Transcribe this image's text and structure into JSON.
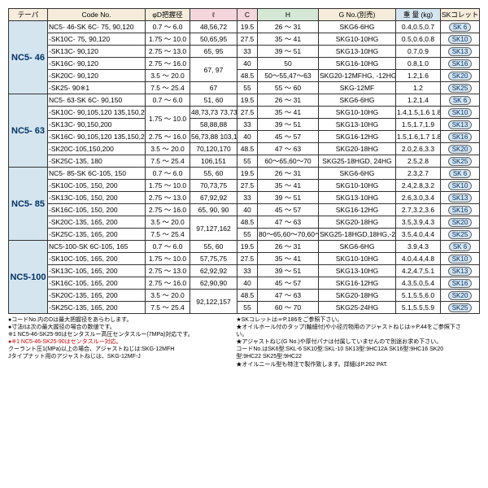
{
  "cols": [
    "テーパ",
    "Code No.",
    "φD把握径",
    "ℓ",
    "C",
    "H",
    "G No.(別売)",
    "重 量\n(kg)",
    "SKコレット"
  ],
  "widths": [
    48,
    120,
    55,
    58,
    25,
    75,
    95,
    55,
    48
  ],
  "hdrClass": [
    "",
    "",
    "",
    "hdr-pink",
    "hdr-pink",
    "hdr-green",
    "",
    "hdr-blue",
    ""
  ],
  "groups": [
    "NC5- 46",
    "NC5- 63",
    "NC5- 85",
    "NC5-100"
  ],
  "rows": [
    [
      {
        "g": 0,
        "rs": 6
      },
      "NC5- 46-SK 6C- 75, 90,120",
      "0.7 ～ 6.0",
      "48,56,72",
      "19.5",
      "26 ～ 31",
      "SKG6-6HG",
      "0.4,0.5,0.7",
      "SK 6"
    ],
    [
      null,
      "-SK10C- 75, 90,120",
      "1.75 ～ 10.0",
      "50,65,95",
      "27.5",
      "35 ～ 41",
      "SKG10-10HG",
      "0.5,0.6,0.8",
      "SK10"
    ],
    [
      null,
      "-SK13C- 90,120",
      "2.75 ～ 13.0",
      "65, 95",
      "33",
      "39 ～ 51",
      "SKG13-10HG",
      "0.7,0.9",
      "SK13"
    ],
    [
      null,
      "-SK16C- 90,120",
      "2.75 ～ 16.0",
      {
        "t": "67, 97",
        "rs": 2
      },
      "40",
      "50",
      "SKG16-10HG",
      "0.8,1.0",
      "SK16"
    ],
    [
      null,
      "-SK20C- 90,120",
      "3.5 ～ 20.0",
      null,
      "48.5",
      "50～55,47～63",
      "SKG20-12MFHG, -12HG",
      "1.2,1.6",
      "SK20"
    ],
    [
      null,
      "-SK25- 90※1",
      "7.5 ～ 25.4",
      "67",
      "55",
      "55 ～ 60",
      "SKG-12MF",
      "1.2",
      "SK25"
    ],
    [
      {
        "g": 1,
        "rs": 6
      },
      "NC5- 63-SK 6C- 90,150",
      "0.7 ～ 6.0",
      "51, 60",
      "19.5",
      "26 ～ 31",
      "SKG6-6HG",
      "1.2,1.4",
      "SK 6"
    ],
    [
      null,
      "-SK10C- 90,105,120\n135,150,200",
      {
        "t": "1.75 ～ 10.0",
        "rs": 2
      },
      "48,73,73\n73,73,73",
      "27.5",
      "35 ～ 41",
      "SKG10-10HG",
      "1.4,1.5,1.6\n1.8,1.7,1.9",
      "SK10"
    ],
    [
      null,
      "-SK13C- 90,150,200",
      null,
      "58,88,88",
      "33",
      "39 ～ 51",
      "SKG13-10HG",
      "1.5,1.7,1.9",
      "SK13"
    ],
    [
      null,
      "-SK16C- 90,105,120\n135,150,200",
      "2.75 ～ 16.0",
      "56,73,88\n103,118,168",
      "40",
      "45 ～ 57",
      "SKG16-12HG",
      "1.5,1.6,1.7\n1.8,2.0,2.2",
      "SK16"
    ],
    [
      null,
      "-SK20C-105,150,200",
      "3.5 ～ 20.0",
      "70,120,170",
      "48.5",
      "47 ～ 63",
      "SKG20-18HG",
      "2.0,2.6,3.3",
      "SK20"
    ],
    [
      null,
      "-SK25C-135, 180",
      "7.5 ～ 25.4",
      "106,151",
      "55",
      "60～65,60～70",
      "SKG25-18HGD, 24HG",
      "2.5,2.8",
      "SK25"
    ],
    [
      {
        "g": 2,
        "rs": 6
      },
      "NC5- 85-SK 6C-105, 150",
      "0.7 ～ 6.0",
      "55, 60",
      "19.5",
      "26 ～ 31",
      "SKG6-6HG",
      "2.3,2.7",
      "SK 6"
    ],
    [
      null,
      "-SK10C-105, 150, 200",
      "1.75 ～ 10.0",
      "70,73,75",
      "27.5",
      "35 ～ 41",
      "SKG10-10HG",
      "2.4,2.8,3.2",
      "SK10"
    ],
    [
      null,
      "-SK13C-105, 150, 200",
      "2.75 ～ 13.0",
      "67,92,92",
      "33",
      "39 ～ 51",
      "SKG13-10HG",
      "2.6,3.0,3.4",
      "SK13"
    ],
    [
      null,
      "-SK16C-105, 150, 200",
      "2.75 ～ 16.0",
      "65, 90, 90",
      "40",
      "45 ～ 57",
      "SKG16-12HG",
      "2.7,3.2,3.6",
      "SK16"
    ],
    [
      null,
      "-SK20C-135, 165, 200",
      "3.5 ～ 20.0",
      {
        "t": "97,127,162",
        "rs": 2
      },
      "48.5",
      "47 ～ 63",
      "SKG20-18HG",
      "3.5,3.9,4.3",
      "SK20"
    ],
    [
      null,
      "-SK25C-135, 165, 200",
      "7.5 ～ 25.4",
      null,
      "55",
      "80～65,60～70,60～70",
      "SKG25-18HGD,18HG,-24HG",
      "3.5,4.0,4.4",
      "SK25"
    ],
    [
      {
        "g": 3,
        "rs": 6
      },
      "NC5-100-SK 6C-105, 165",
      "0.7 ～ 6.0",
      "55, 60",
      "19.5",
      "26 ～ 31",
      "SKG6-6HG",
      "3.9,4.3",
      "SK 6"
    ],
    [
      null,
      "-SK10C-105, 165, 200",
      "1.75 ～ 10.0",
      "57,75,75",
      "27.5",
      "35 ～ 41",
      "SKG10-10HG",
      "4.0,4.4,4.8",
      "SK10"
    ],
    [
      null,
      "-SK13C-105, 165, 200",
      "2.75 ～ 13.0",
      "62,92,92",
      "33",
      "39 ～ 51",
      "SKG13-10HG",
      "4.2,4.7,5.1",
      "SK13"
    ],
    [
      null,
      "-SK16C-105, 165, 200",
      "2.75 ～ 16.0",
      "62,90,90",
      "40",
      "45 ～ 57",
      "SKG16-12HG",
      "4.3,5.0,5.4",
      "SK16"
    ],
    [
      null,
      "-SK20C-135, 165, 200",
      "3.5 ～ 20.0",
      {
        "t": "92,122,157",
        "rs": 2
      },
      "48.5",
      "47 ～ 63",
      "SKG20-18HG",
      "5.1,5.5,6.0",
      "SK20"
    ],
    [
      null,
      "-SK25C-135, 165, 200",
      "7.5 ～ 25.4",
      null,
      "55",
      "60 ～ 70",
      "SKG25-24HG",
      "5.1,5.5,5.9",
      "SK25"
    ]
  ],
  "notes_l": [
    "●コードNo.内のDは最大把握径をあらわします。",
    "●寸法ℓは次の最大握径の場合の数値です。",
    "※1 NC5-46-SK25-90はセンタスルー高圧センタスルー(7MPa)対応です。",
    "●※1 NC5-46-SK25-90はセンタスルー対応。",
    "クーラント圧1(MPa)以上の場合、アジャストねじは:SKG-12MFH",
    "Jタイプナット用のアジャストねじは、SKG-12MF-J"
  ],
  "notes_r": [
    "★SKコレットは☞P.186をご参照下さい。",
    "★オイルホール付のタップ(軸細付)や小径刃物用のアジャストねじは☞P.44をご参照下さい。",
    "★アジャストねじ(G No.)や厚付パナは付属していませんので別途お求め下さい。",
    "コードNo.はSK6型:SKL-6 SK10型:SKL-10 SK13型:9HC12A SK16型:9HC16 SK20型:9HC22 SK25型:9HC22",
    "★オイルニール型も特注で製作致します。詳細はP.262  PAT."
  ]
}
